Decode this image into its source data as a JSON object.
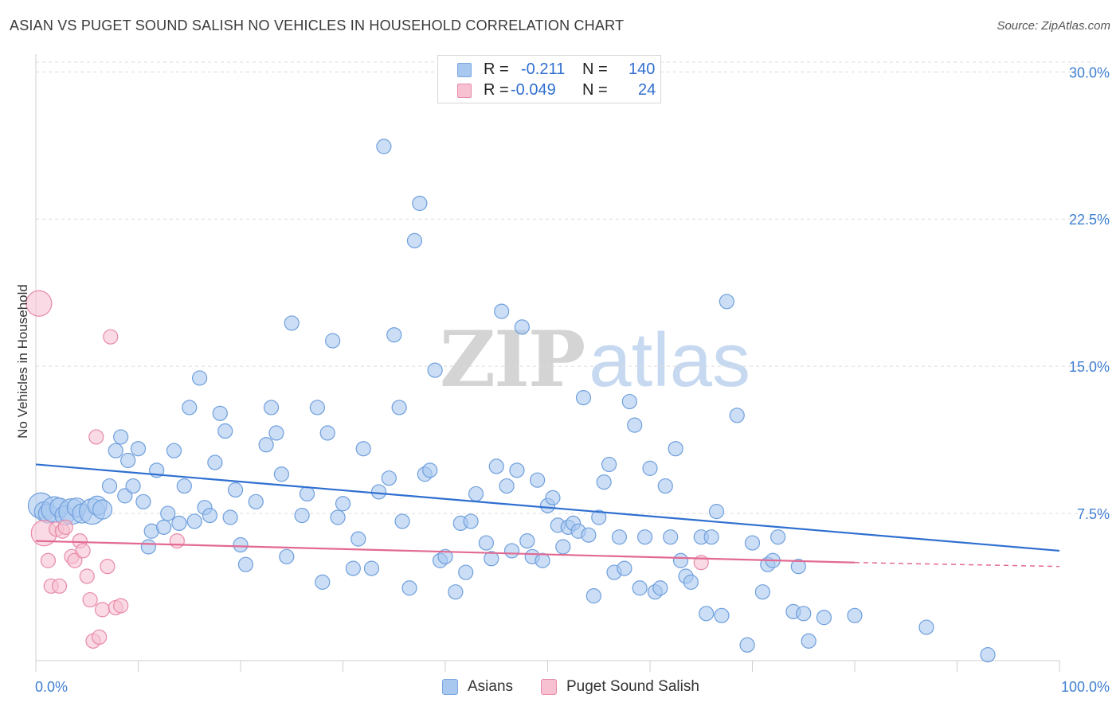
{
  "title": "ASIAN VS PUGET SOUND SALISH NO VEHICLES IN HOUSEHOLD CORRELATION CHART",
  "source": "Source: ZipAtlas.com",
  "watermark": {
    "zip": "ZIP",
    "atlas": "atlas"
  },
  "legend": {
    "rows": [
      {
        "r_label": "R =",
        "r_value": "-0.211",
        "n_label": "N =",
        "n_value": "140",
        "color": "#a9c8f0",
        "border": "#7aa6e0"
      },
      {
        "r_label": "R =",
        "r_value": "-0.049",
        "n_label": "N =",
        "n_value": "24",
        "color": "#f7c1d2",
        "border": "#e88aa8"
      }
    ]
  },
  "bottom_legend": [
    {
      "label": "Asians",
      "color": "#a9c8f0",
      "border": "#7aa6e0"
    },
    {
      "label": "Puget Sound Salish",
      "color": "#f7c1d2",
      "border": "#e88aa8"
    }
  ],
  "chart_data": {
    "type": "scatter",
    "title": "ASIAN VS PUGET SOUND SALISH NO VEHICLES IN HOUSEHOLD CORRELATION CHART",
    "xlabel": "",
    "ylabel": "No Vehicles in Household",
    "xlim": [
      0,
      100
    ],
    "ylim": [
      0,
      30.5
    ],
    "x_tick_labels": [
      "0.0%",
      "100.0%"
    ],
    "y_ticks": [
      7.5,
      15.0,
      22.5,
      30.0
    ],
    "y_tick_labels": [
      "7.5%",
      "15.0%",
      "22.5%",
      "30.0%"
    ],
    "grid": true,
    "series": [
      {
        "name": "Asians",
        "color": "#a9c8f0",
        "stroke": "#6f9fdc",
        "trend": {
          "x": [
            0,
            100
          ],
          "y": [
            10.0,
            5.6
          ],
          "color": "#2f6fd0"
        },
        "points": [
          [
            0.5,
            7.9
          ],
          [
            0.8,
            7.6
          ],
          [
            1.2,
            7.5
          ],
          [
            1.8,
            7.7
          ],
          [
            2.3,
            7.8
          ],
          [
            2.8,
            7.4
          ],
          [
            3.5,
            7.6
          ],
          [
            4.0,
            7.8
          ],
          [
            4.5,
            7.5
          ],
          [
            5.5,
            7.6
          ],
          [
            6.0,
            7.9
          ],
          [
            6.5,
            7.7
          ],
          [
            7.2,
            8.9
          ],
          [
            7.8,
            10.7
          ],
          [
            8.3,
            11.4
          ],
          [
            8.7,
            8.4
          ],
          [
            9.0,
            10.2
          ],
          [
            9.5,
            8.9
          ],
          [
            10.0,
            10.8
          ],
          [
            10.5,
            8.1
          ],
          [
            11.0,
            5.8
          ],
          [
            11.3,
            6.6
          ],
          [
            11.8,
            9.7
          ],
          [
            12.5,
            6.8
          ],
          [
            12.9,
            7.5
          ],
          [
            13.5,
            10.7
          ],
          [
            14.0,
            7.0
          ],
          [
            14.5,
            8.9
          ],
          [
            15.0,
            12.9
          ],
          [
            15.5,
            7.1
          ],
          [
            16.0,
            14.4
          ],
          [
            16.5,
            7.8
          ],
          [
            17.0,
            7.4
          ],
          [
            17.5,
            10.1
          ],
          [
            18.0,
            12.6
          ],
          [
            18.5,
            11.7
          ],
          [
            19.0,
            7.3
          ],
          [
            19.5,
            8.7
          ],
          [
            20.0,
            5.9
          ],
          [
            20.5,
            4.9
          ],
          [
            21.5,
            8.1
          ],
          [
            22.5,
            11.0
          ],
          [
            23.0,
            12.9
          ],
          [
            23.5,
            11.6
          ],
          [
            24.0,
            9.5
          ],
          [
            24.5,
            5.3
          ],
          [
            25.0,
            17.2
          ],
          [
            26.0,
            7.4
          ],
          [
            26.5,
            8.5
          ],
          [
            27.5,
            12.9
          ],
          [
            28.0,
            4.0
          ],
          [
            28.5,
            11.6
          ],
          [
            29.0,
            16.3
          ],
          [
            29.5,
            7.3
          ],
          [
            30.0,
            8.0
          ],
          [
            31.0,
            4.7
          ],
          [
            31.5,
            6.2
          ],
          [
            32.0,
            10.8
          ],
          [
            32.8,
            4.7
          ],
          [
            33.5,
            8.6
          ],
          [
            34.0,
            26.2
          ],
          [
            34.5,
            9.3
          ],
          [
            35.0,
            16.6
          ],
          [
            35.5,
            12.9
          ],
          [
            35.8,
            7.1
          ],
          [
            36.5,
            3.7
          ],
          [
            37.0,
            21.4
          ],
          [
            37.5,
            23.3
          ],
          [
            38.0,
            9.5
          ],
          [
            38.5,
            9.7
          ],
          [
            39.0,
            14.8
          ],
          [
            39.5,
            5.1
          ],
          [
            40.0,
            5.3
          ],
          [
            41.0,
            3.5
          ],
          [
            41.5,
            7.0
          ],
          [
            42.0,
            4.5
          ],
          [
            42.5,
            7.1
          ],
          [
            43.0,
            8.5
          ],
          [
            44.0,
            6.0
          ],
          [
            44.5,
            5.2
          ],
          [
            45.0,
            9.9
          ],
          [
            45.5,
            17.8
          ],
          [
            46.0,
            8.9
          ],
          [
            46.5,
            5.6
          ],
          [
            47.0,
            9.7
          ],
          [
            47.5,
            17.0
          ],
          [
            48.0,
            6.1
          ],
          [
            48.5,
            5.3
          ],
          [
            49.0,
            9.2
          ],
          [
            49.5,
            5.1
          ],
          [
            50.0,
            7.9
          ],
          [
            50.5,
            8.3
          ],
          [
            51.0,
            6.9
          ],
          [
            51.5,
            5.8
          ],
          [
            52.0,
            6.8
          ],
          [
            52.5,
            7.0
          ],
          [
            53.0,
            6.6
          ],
          [
            53.5,
            13.4
          ],
          [
            54.0,
            6.4
          ],
          [
            54.5,
            3.3
          ],
          [
            55.0,
            7.3
          ],
          [
            55.5,
            9.1
          ],
          [
            56.0,
            10.0
          ],
          [
            56.5,
            4.5
          ],
          [
            57.0,
            6.3
          ],
          [
            57.5,
            4.7
          ],
          [
            58.0,
            13.2
          ],
          [
            58.5,
            12.0
          ],
          [
            59.0,
            3.7
          ],
          [
            59.5,
            6.3
          ],
          [
            60.0,
            9.8
          ],
          [
            60.5,
            3.5
          ],
          [
            61.0,
            3.7
          ],
          [
            61.5,
            8.9
          ],
          [
            62.0,
            6.3
          ],
          [
            62.5,
            10.8
          ],
          [
            63.0,
            5.1
          ],
          [
            63.5,
            4.3
          ],
          [
            64.0,
            4.0
          ],
          [
            65.0,
            6.3
          ],
          [
            65.5,
            2.4
          ],
          [
            66.0,
            6.3
          ],
          [
            66.5,
            7.6
          ],
          [
            67.0,
            2.3
          ],
          [
            67.5,
            18.3
          ],
          [
            68.5,
            12.5
          ],
          [
            69.5,
            0.8
          ],
          [
            70.0,
            6.0
          ],
          [
            71.0,
            3.5
          ],
          [
            71.5,
            4.9
          ],
          [
            72.0,
            5.1
          ],
          [
            72.5,
            6.3
          ],
          [
            74.0,
            2.5
          ],
          [
            74.5,
            4.8
          ],
          [
            75.0,
            2.4
          ],
          [
            75.5,
            1.0
          ],
          [
            77.0,
            2.2
          ],
          [
            80.0,
            2.3
          ],
          [
            87.0,
            1.7
          ],
          [
            93.0,
            0.3
          ]
        ]
      },
      {
        "name": "Puget Sound Salish",
        "color": "#f7c1d2",
        "stroke": "#e88aa8",
        "trend": {
          "x": [
            0,
            80
          ],
          "y": [
            6.1,
            5.0
          ],
          "dashed_to": [
            100,
            4.8
          ],
          "color": "#e26a92"
        },
        "points": [
          [
            0.3,
            18.2
          ],
          [
            0.8,
            6.5
          ],
          [
            1.2,
            5.1
          ],
          [
            1.5,
            3.8
          ],
          [
            2.0,
            6.7
          ],
          [
            2.3,
            3.8
          ],
          [
            2.6,
            6.6
          ],
          [
            2.9,
            6.8
          ],
          [
            3.5,
            5.3
          ],
          [
            3.8,
            5.1
          ],
          [
            4.3,
            6.1
          ],
          [
            4.6,
            5.6
          ],
          [
            5.0,
            4.3
          ],
          [
            5.3,
            3.1
          ],
          [
            5.6,
            1.0
          ],
          [
            5.9,
            11.4
          ],
          [
            6.2,
            1.2
          ],
          [
            6.5,
            2.6
          ],
          [
            7.0,
            4.8
          ],
          [
            7.3,
            16.5
          ],
          [
            7.8,
            2.7
          ],
          [
            8.3,
            2.8
          ],
          [
            13.8,
            6.1
          ],
          [
            65.0,
            5.0
          ]
        ]
      }
    ]
  }
}
